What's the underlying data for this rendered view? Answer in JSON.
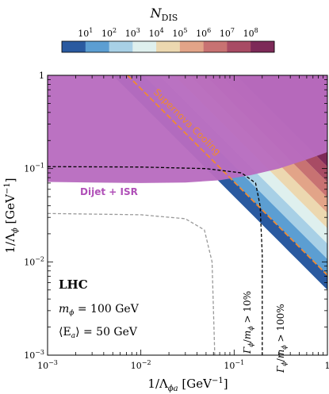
{
  "chart_data": {
    "type": "contour",
    "colorbar": {
      "title": "N",
      "title_sub": "DIS",
      "tick_labels": [
        {
          "base": "10",
          "exp": "1"
        },
        {
          "base": "10",
          "exp": "2"
        },
        {
          "base": "10",
          "exp": "3"
        },
        {
          "base": "10",
          "exp": "4"
        },
        {
          "base": "10",
          "exp": "5"
        },
        {
          "base": "10",
          "exp": "6"
        },
        {
          "base": "10",
          "exp": "7"
        },
        {
          "base": "10",
          "exp": "8"
        }
      ],
      "colors": [
        "#2a5aa0",
        "#5c9ed2",
        "#a8d0e6",
        "#dff0ee",
        "#ecd8b0",
        "#e2a488",
        "#c87272",
        "#a84b64",
        "#7d2a58"
      ]
    },
    "xaxis": {
      "label_prefix": "1/Λ",
      "label_sub": "ϕa",
      "label_suffix": " [GeV",
      "label_unit_exp": "−1",
      "label_close": "]",
      "scale": "log",
      "range": [
        0.001,
        1
      ],
      "ticks": [
        {
          "base": "10",
          "exp": "−3"
        },
        {
          "base": "10",
          "exp": "−2"
        },
        {
          "base": "10",
          "exp": "−1"
        },
        {
          "base": "1",
          "exp": ""
        }
      ]
    },
    "yaxis": {
      "label_prefix": "1/Λ",
      "label_sub": "ϕ",
      "label_suffix": " [GeV",
      "label_unit_exp": "−1",
      "label_close": "]",
      "scale": "log",
      "range": [
        0.001,
        1
      ],
      "ticks": [
        {
          "base": "1",
          "exp": ""
        },
        {
          "base": "10",
          "exp": "−1"
        },
        {
          "base": "10",
          "exp": "−2"
        },
        {
          "base": "10",
          "exp": "−3"
        }
      ]
    },
    "dijet_region": {
      "label": "Dijet + ISR",
      "color": "#b86cc0",
      "boundary": [
        [
          0.001,
          0.072
        ],
        [
          0.003,
          0.071
        ],
        [
          0.01,
          0.07
        ],
        [
          0.03,
          0.071
        ],
        [
          0.07,
          0.075
        ],
        [
          0.15,
          0.085
        ],
        [
          0.3,
          0.1
        ],
        [
          0.6,
          0.125
        ],
        [
          1,
          0.15
        ]
      ]
    },
    "supernova_line": {
      "label": "Supernova Cooling",
      "color": "#f08a30",
      "points": [
        [
          0.0072,
          1
        ],
        [
          1,
          0.0072
        ]
      ]
    },
    "width_10pct": {
      "label": "Γϕ/mϕ > 10%",
      "color": "#999999",
      "points": [
        [
          0.001,
          0.033
        ],
        [
          0.01,
          0.032
        ],
        [
          0.03,
          0.029
        ],
        [
          0.048,
          0.022
        ],
        [
          0.058,
          0.01
        ],
        [
          0.062,
          0.001
        ]
      ]
    },
    "width_100pct": {
      "label": "Γϕ/mϕ > 100%",
      "color": "#000000",
      "points": [
        [
          0.001,
          0.105
        ],
        [
          0.01,
          0.104
        ],
        [
          0.05,
          0.1
        ],
        [
          0.12,
          0.09
        ],
        [
          0.17,
          0.07
        ],
        [
          0.19,
          0.04
        ],
        [
          0.2,
          0.012
        ],
        [
          0.2,
          0.001
        ]
      ]
    },
    "annotations": {
      "experiment": "LHC",
      "mass_line": {
        "symbol": "m",
        "sub": "ϕ",
        "value": " = 100 GeV"
      },
      "energy_line": {
        "symbol": "⟨E",
        "sub": "a",
        "value": "⟩ = 50 GeV"
      }
    }
  }
}
